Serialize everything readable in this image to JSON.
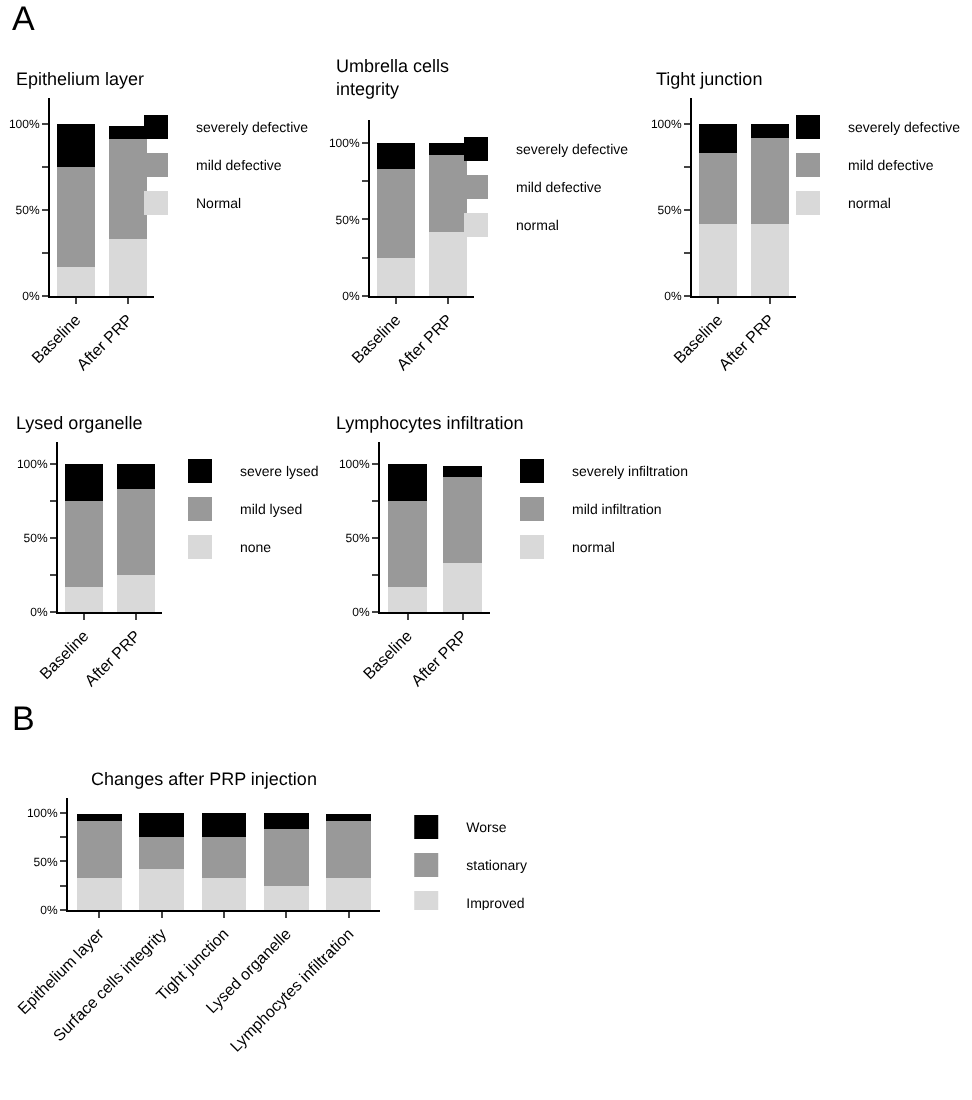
{
  "chart_data": [
    {
      "type": "bar",
      "stacked": true,
      "title": "Epithelium layer",
      "annotations": [
        "A"
      ],
      "categories": [
        "Baseline",
        "After PRP"
      ],
      "series": [
        {
          "name": "Normal",
          "color": "#d9d9d9",
          "values": [
            17,
            33
          ]
        },
        {
          "name": "mild defective",
          "color": "#999999",
          "values": [
            58,
            58
          ]
        },
        {
          "name": "severely defective",
          "color": "#000000",
          "values": [
            25,
            8
          ]
        }
      ],
      "ylim": [
        0,
        115
      ],
      "yticks": [
        {
          "value": 0,
          "label": "0%"
        },
        {
          "value": 25,
          "label": null
        },
        {
          "value": 50,
          "label": "50%"
        },
        {
          "value": 75,
          "label": null
        },
        {
          "value": 100,
          "label": "100%"
        }
      ],
      "grid": false,
      "legend": "right"
    },
    {
      "type": "bar",
      "stacked": true,
      "title": "Umbrella cells\nintegrity",
      "categories": [
        "Baseline",
        "After PRP"
      ],
      "series": [
        {
          "name": "normal",
          "color": "#d9d9d9",
          "values": [
            25,
            42
          ]
        },
        {
          "name": "mild defective",
          "color": "#999999",
          "values": [
            58,
            50
          ]
        },
        {
          "name": "severely defective",
          "color": "#000000",
          "values": [
            17,
            8
          ]
        }
      ],
      "ylim": [
        0,
        115
      ],
      "yticks": [
        {
          "value": 0,
          "label": "0%"
        },
        {
          "value": 25,
          "label": null
        },
        {
          "value": 50,
          "label": "50%"
        },
        {
          "value": 75,
          "label": null
        },
        {
          "value": 100,
          "label": "100%"
        }
      ],
      "grid": false,
      "legend": "right"
    },
    {
      "type": "bar",
      "stacked": true,
      "title": "Tight junction",
      "categories": [
        "Baseline",
        "After PRP"
      ],
      "series": [
        {
          "name": "normal",
          "color": "#d9d9d9",
          "values": [
            42,
            42
          ]
        },
        {
          "name": "mild defective",
          "color": "#999999",
          "values": [
            41,
            50
          ]
        },
        {
          "name": "severely defective",
          "color": "#000000",
          "values": [
            17,
            8
          ]
        }
      ],
      "ylim": [
        0,
        115
      ],
      "yticks": [
        {
          "value": 0,
          "label": "0%"
        },
        {
          "value": 25,
          "label": null
        },
        {
          "value": 50,
          "label": "50%"
        },
        {
          "value": 75,
          "label": null
        },
        {
          "value": 100,
          "label": "100%"
        }
      ],
      "grid": false,
      "legend": "right"
    },
    {
      "type": "bar",
      "stacked": true,
      "title": "Lysed organelle",
      "categories": [
        "Baseline",
        "After PRP"
      ],
      "series": [
        {
          "name": "none",
          "color": "#d9d9d9",
          "values": [
            17,
            25
          ]
        },
        {
          "name": "mild lysed",
          "color": "#999999",
          "values": [
            58,
            58
          ]
        },
        {
          "name": "severe lysed",
          "color": "#000000",
          "values": [
            25,
            17
          ]
        }
      ],
      "ylim": [
        0,
        115
      ],
      "yticks": [
        {
          "value": 0,
          "label": "0%"
        },
        {
          "value": 25,
          "label": null
        },
        {
          "value": 50,
          "label": "50%"
        },
        {
          "value": 75,
          "label": null
        },
        {
          "value": 100,
          "label": "100%"
        }
      ],
      "grid": false,
      "legend": "right"
    },
    {
      "type": "bar",
      "stacked": true,
      "title": "Lymphocytes infiltration",
      "categories": [
        "Baseline",
        "After PRP"
      ],
      "series": [
        {
          "name": "normal",
          "color": "#d9d9d9",
          "values": [
            17,
            33
          ]
        },
        {
          "name": "mild infiltration",
          "color": "#999999",
          "values": [
            58,
            58
          ]
        },
        {
          "name": "severely infiltration",
          "color": "#000000",
          "values": [
            25,
            8
          ]
        }
      ],
      "ylim": [
        0,
        115
      ],
      "yticks": [
        {
          "value": 0,
          "label": "0%"
        },
        {
          "value": 25,
          "label": null
        },
        {
          "value": 50,
          "label": "50%"
        },
        {
          "value": 75,
          "label": null
        },
        {
          "value": 100,
          "label": "100%"
        }
      ],
      "grid": false,
      "legend": "right"
    },
    {
      "type": "bar",
      "stacked": true,
      "title": "Changes after PRP injection",
      "annotations": [
        "B"
      ],
      "categories": [
        "Epithelium layer",
        "Surface cells integrity",
        "Tight junction",
        "Lysed organelle",
        "Lymphocytes infiltration"
      ],
      "series": [
        {
          "name": "Improved",
          "color": "#d9d9d9",
          "values": [
            33,
            42,
            33,
            25,
            33
          ]
        },
        {
          "name": "stationary",
          "color": "#999999",
          "values": [
            58,
            33,
            42,
            58,
            58
          ]
        },
        {
          "name": "Worse",
          "color": "#000000",
          "values": [
            8,
            25,
            25,
            17,
            8
          ]
        }
      ],
      "ylim": [
        0,
        115
      ],
      "yticks": [
        {
          "value": 0,
          "label": "0%"
        },
        {
          "value": 25,
          "label": null
        },
        {
          "value": 50,
          "label": "50%"
        },
        {
          "value": 75,
          "label": null
        },
        {
          "value": 100,
          "label": "100%"
        }
      ],
      "grid": false,
      "legend": "right"
    }
  ]
}
